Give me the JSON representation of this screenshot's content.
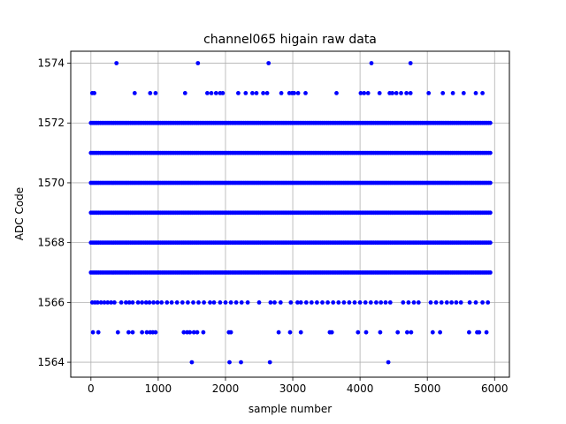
{
  "chart_data": {
    "type": "scatter",
    "title": "channel065 higain raw data",
    "xlabel": "sample number",
    "ylabel": "ADC Code",
    "xlim": [
      -300,
      6220
    ],
    "ylim": [
      1563.5,
      1574.4
    ],
    "xticks": [
      0,
      1000,
      2000,
      3000,
      4000,
      5000,
      6000
    ],
    "yticks": [
      1564,
      1566,
      1568,
      1570,
      1572,
      1574
    ],
    "grid": true,
    "marker_color": "#0000ff",
    "sample_count": 5940,
    "series": [
      {
        "values": [
          {
            "y": 1574,
            "x": [
              380,
              1590,
              2640,
              4170,
              4750
            ]
          },
          {
            "y": 1573,
            "x": [
              20,
              50,
              650,
              880,
              960,
              1400,
              1730,
              1790,
              1860,
              1920,
              1960,
              2190,
              2300,
              2400,
              2460,
              2560,
              2620,
              2830,
              2950,
              2990,
              3020,
              3080,
              3190,
              3650,
              4010,
              4060,
              4120,
              4290,
              4440,
              4480,
              4540,
              4610,
              4690,
              4750,
              5020,
              5230,
              5380,
              5540,
              5720,
              5820
            ]
          },
          {
            "y": 1566,
            "x": [
              20,
              60,
              100,
              150,
              200,
              250,
              300,
              350,
              450,
              520,
              570,
              620,
              700,
              760,
              820,
              870,
              930,
              990,
              1050,
              1130,
              1200,
              1280,
              1360,
              1440,
              1520,
              1600,
              1680,
              1770,
              1830,
              1920,
              2000,
              2080,
              2160,
              2240,
              2330,
              2500,
              2670,
              2730,
              2820,
              2970,
              3070,
              3120,
              3200,
              3280,
              3360,
              3440,
              3520,
              3600,
              3680,
              3760,
              3840,
              3920,
              4000,
              4080,
              4160,
              4240,
              4310,
              4380,
              4450,
              4640,
              4720,
              4800,
              4870,
              5050,
              5130,
              5210,
              5290,
              5360,
              5430,
              5500,
              5630,
              5720,
              5820,
              5900
            ]
          },
          {
            "y": 1565,
            "x": [
              30,
              110,
              400,
              560,
              620,
              760,
              830,
              880,
              920,
              960,
              1380,
              1430,
              1470,
              1530,
              1580,
              1670,
              2050,
              2080,
              2790,
              2960,
              3120,
              3550,
              3580,
              3970,
              4090,
              4300,
              4560,
              4700,
              4760,
              5080,
              5190,
              5620,
              5740,
              5770,
              5880
            ]
          },
          {
            "y": 1564,
            "x": [
              1500,
              2060,
              2230,
              2660,
              4420
            ]
          }
        ],
        "dense_rows": [
          1567,
          1568,
          1569,
          1570,
          1571,
          1572
        ]
      }
    ]
  }
}
